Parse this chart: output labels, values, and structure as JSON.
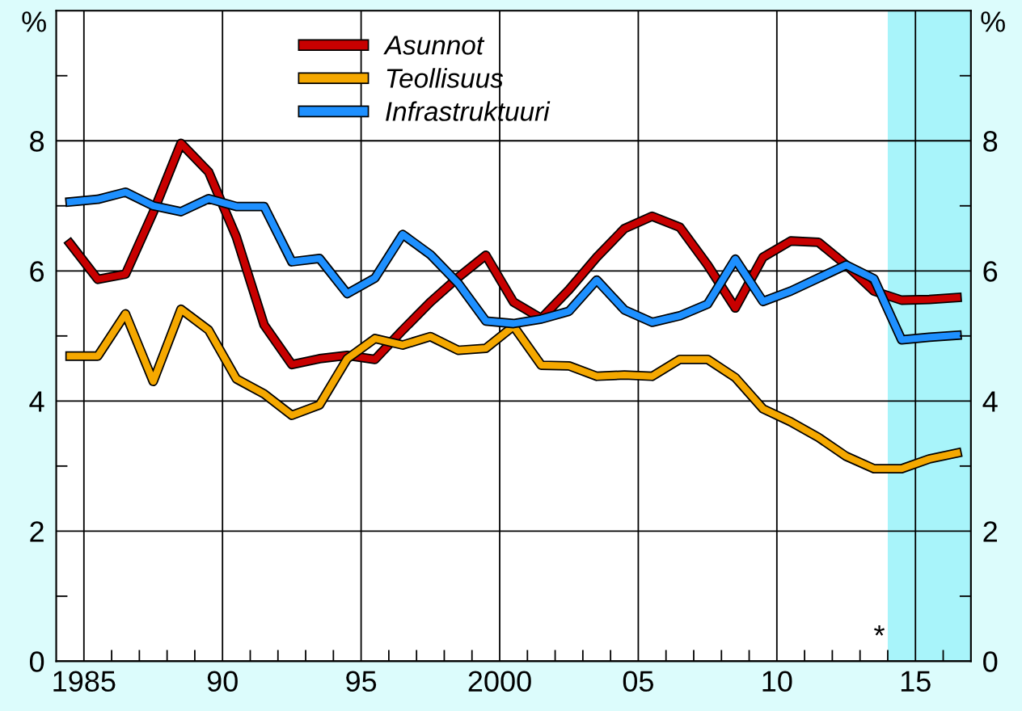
{
  "chart_data": {
    "type": "line",
    "x": [
      1984.5,
      1985.5,
      1986.5,
      1987.5,
      1988.5,
      1989.5,
      1990.5,
      1991.5,
      1992.5,
      1993.5,
      1994.5,
      1995.5,
      1996.5,
      1997.5,
      1998.5,
      1999.5,
      2000.5,
      2001.5,
      2002.5,
      2003.5,
      2004.5,
      2005.5,
      2006.5,
      2007.5,
      2008.5,
      2009.5,
      2010.5,
      2011.5,
      2012.5,
      2013.5,
      2014.5,
      2015.5,
      2016.5
    ],
    "series": [
      {
        "name": "Asunnot",
        "color": "#c80000",
        "values": [
          6.42,
          5.87,
          5.95,
          6.9,
          7.96,
          7.52,
          6.52,
          5.17,
          4.56,
          4.65,
          4.7,
          4.64,
          5.09,
          5.52,
          5.9,
          6.24,
          5.52,
          5.27,
          5.71,
          6.21,
          6.65,
          6.84,
          6.67,
          6.09,
          5.43,
          6.21,
          6.46,
          6.44,
          6.09,
          5.69,
          5.55,
          5.56,
          5.59
        ]
      },
      {
        "name": "Teollisuus",
        "color": "#f5a800",
        "values": [
          4.69,
          4.69,
          5.34,
          4.3,
          5.41,
          5.09,
          4.34,
          4.11,
          3.78,
          3.94,
          4.65,
          4.96,
          4.86,
          4.99,
          4.78,
          4.81,
          5.15,
          4.55,
          4.54,
          4.38,
          4.4,
          4.38,
          4.64,
          4.64,
          4.36,
          3.88,
          3.68,
          3.44,
          3.15,
          2.96,
          2.96,
          3.11,
          3.2
        ]
      },
      {
        "name": "Infrastruktuuri",
        "color": "#1e90ff",
        "values": [
          7.06,
          7.1,
          7.21,
          7.0,
          6.91,
          7.11,
          6.99,
          6.99,
          6.14,
          6.19,
          5.65,
          5.89,
          6.56,
          6.25,
          5.81,
          5.23,
          5.19,
          5.26,
          5.38,
          5.86,
          5.4,
          5.21,
          5.31,
          5.49,
          6.18,
          5.53,
          5.69,
          5.89,
          6.09,
          5.88,
          4.94,
          4.98,
          5.01
        ]
      }
    ],
    "ylabel": "%",
    "y2label": "%",
    "xlim": [
      1984,
      2017
    ],
    "xticks": [
      {
        "value": 1985,
        "label": "1985"
      },
      {
        "value": 1986,
        "label": null
      },
      {
        "value": 1987,
        "label": null
      },
      {
        "value": 1988,
        "label": null
      },
      {
        "value": 1989,
        "label": null
      },
      {
        "value": 1990,
        "label": "90"
      },
      {
        "value": 1991,
        "label": null
      },
      {
        "value": 1992,
        "label": null
      },
      {
        "value": 1993,
        "label": null
      },
      {
        "value": 1994,
        "label": null
      },
      {
        "value": 1995,
        "label": "95"
      },
      {
        "value": 1996,
        "label": null
      },
      {
        "value": 1997,
        "label": null
      },
      {
        "value": 1998,
        "label": null
      },
      {
        "value": 1999,
        "label": null
      },
      {
        "value": 2000,
        "label": "2000"
      },
      {
        "value": 2001,
        "label": null
      },
      {
        "value": 2002,
        "label": null
      },
      {
        "value": 2003,
        "label": null
      },
      {
        "value": 2004,
        "label": null
      },
      {
        "value": 2005,
        "label": "05"
      },
      {
        "value": 2006,
        "label": null
      },
      {
        "value": 2007,
        "label": null
      },
      {
        "value": 2008,
        "label": null
      },
      {
        "value": 2009,
        "label": null
      },
      {
        "value": 2010,
        "label": "10"
      },
      {
        "value": 2011,
        "label": null
      },
      {
        "value": 2012,
        "label": null
      },
      {
        "value": 2013,
        "label": null
      },
      {
        "value": 2014,
        "label": null
      },
      {
        "value": 2015,
        "label": "15"
      },
      {
        "value": 2016,
        "label": null
      }
    ],
    "ylim": [
      0,
      10
    ],
    "yticks": [
      0,
      {
        "value": 1,
        "label": null
      },
      2,
      {
        "value": 3,
        "label": null
      },
      4,
      {
        "value": 5,
        "label": null
      },
      6,
      {
        "value": 7,
        "label": null
      },
      8,
      {
        "value": 9,
        "label": null
      }
    ],
    "y2lim": [
      0,
      10
    ],
    "y2ticks": [
      0,
      {
        "value": 1,
        "label": null
      },
      2,
      {
        "value": 3,
        "label": null
      },
      4,
      {
        "value": 5,
        "label": null
      },
      6,
      {
        "value": 7,
        "label": null
      },
      8,
      {
        "value": 9,
        "label": null
      }
    ],
    "bands": [
      {
        "axis": "x",
        "from": 2014,
        "to": 2017,
        "label": "*",
        "color": "#a8f4fa"
      }
    ],
    "grid": true,
    "legend": "top",
    "marker": "none",
    "line_style": "solid"
  }
}
